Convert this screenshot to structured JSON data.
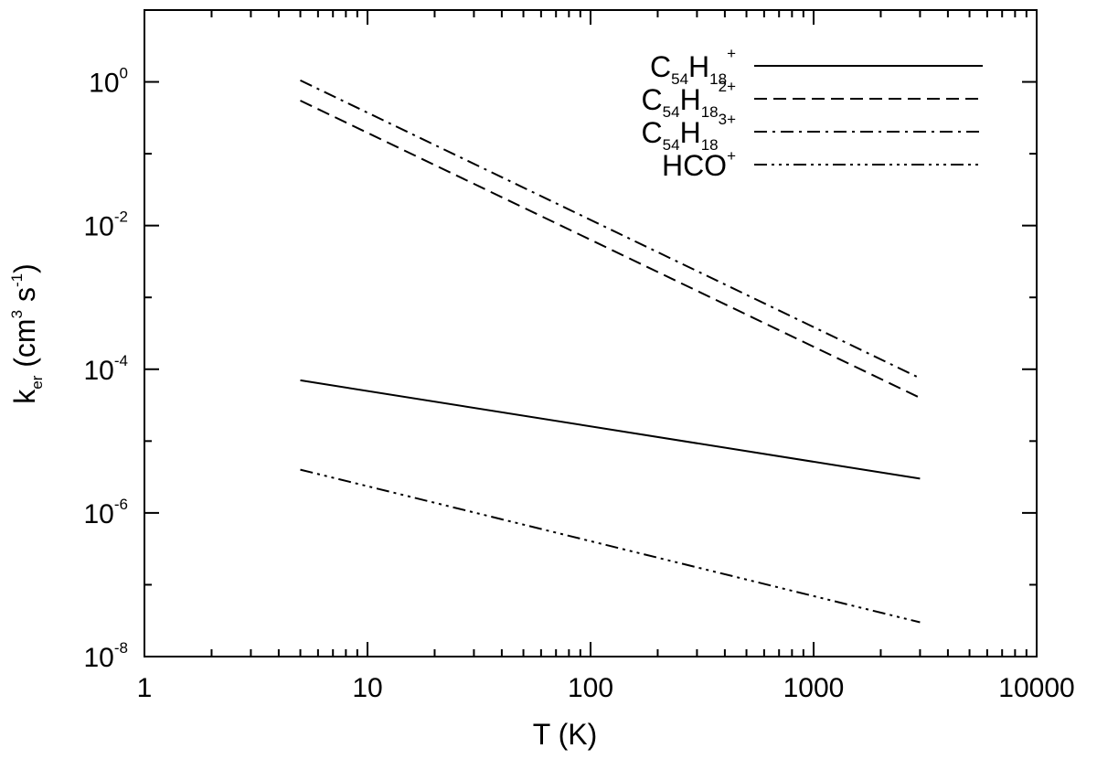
{
  "chart_data": {
    "type": "line",
    "x_scale": "log",
    "y_scale": "log",
    "xlim": [
      1,
      10000
    ],
    "ylim": [
      1e-08,
      10
    ],
    "x_ticks": [
      {
        "value": 1,
        "label": "1"
      },
      {
        "value": 10,
        "label": "10"
      },
      {
        "value": 100,
        "label": "100"
      },
      {
        "value": 1000,
        "label": "1000"
      },
      {
        "value": 10000,
        "label": "10000"
      }
    ],
    "y_ticks": [
      {
        "value": 1,
        "base": "10",
        "exp": "0"
      },
      {
        "value": 0.01,
        "base": "10",
        "exp": "-2"
      },
      {
        "value": 0.0001,
        "base": "10",
        "exp": "-4"
      },
      {
        "value": 1e-06,
        "base": "10",
        "exp": "-6"
      },
      {
        "value": 1e-08,
        "base": "10",
        "exp": "-8"
      }
    ],
    "xlabel": "T (K)",
    "ylabel": {
      "k": "k",
      "k_sub": "er",
      "open": " (cm",
      "cm_exp": "3",
      "s": " s",
      "s_exp": "-1",
      "close": ")"
    },
    "grid": false,
    "legend_position": "top-right",
    "series": [
      {
        "label_parts": {
          "main1": "C",
          "sub1": "54",
          "main2": "H",
          "sub2": "18",
          "sup": "+"
        },
        "dash": "solid",
        "x": [
          5,
          3000
        ],
        "y": [
          7e-05,
          3e-06
        ]
      },
      {
        "label_parts": {
          "main1": "C",
          "sub1": "54",
          "main2": "H",
          "sub2": "18",
          "sup": "2+"
        },
        "dash": "dashed",
        "x": [
          5,
          3000
        ],
        "y": [
          0.55,
          4e-05
        ]
      },
      {
        "label_parts": {
          "main1": "C",
          "sub1": "54",
          "main2": "H",
          "sub2": "18",
          "sup": "3+"
        },
        "dash": "dash-dot",
        "x": [
          5,
          3000
        ],
        "y": [
          1.05,
          7.5e-05
        ]
      },
      {
        "label_parts": {
          "main1": "HCO",
          "sup": "+"
        },
        "dash": "dash-dot-dot",
        "x": [
          5,
          3000
        ],
        "y": [
          4e-06,
          3e-08
        ]
      }
    ]
  }
}
